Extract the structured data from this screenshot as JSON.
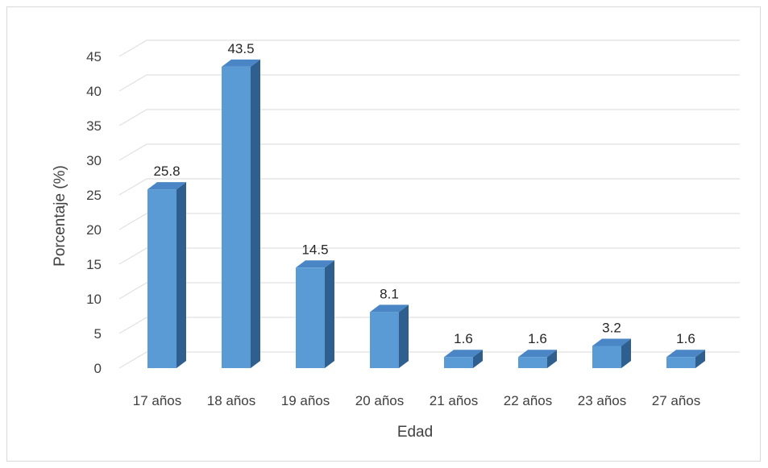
{
  "chart_data": {
    "type": "bar",
    "style": "3d-column",
    "title": "",
    "xlabel": "Edad",
    "ylabel": "Porcentaje (%)",
    "categories": [
      "17 años",
      "18 años",
      "19 años",
      "20 años",
      "21 años",
      "22 años",
      "23 años",
      "27 años"
    ],
    "values": [
      25.8,
      43.5,
      14.5,
      8.1,
      1.6,
      1.6,
      3.2,
      1.6
    ],
    "data_labels": [
      "25.8",
      "43.5",
      "14.5",
      "8.1",
      "1.6",
      "1.6",
      "3.2",
      "1.6"
    ],
    "ylim": [
      0,
      45
    ],
    "yticks": [
      0,
      5,
      10,
      15,
      20,
      25,
      30,
      35,
      40,
      45
    ],
    "grid": true,
    "legend": "none",
    "colors": {
      "bar_front": "#5b9bd5",
      "bar_side": "#2e5f8f",
      "bar_top": "#4a86c5",
      "gridline": "#d9d9d9",
      "text": "#404040"
    }
  }
}
